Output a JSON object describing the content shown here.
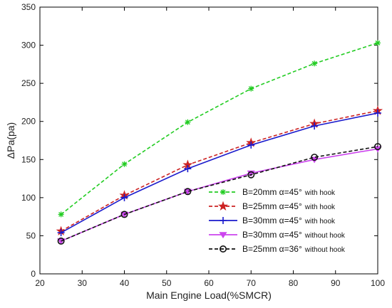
{
  "chart_data": {
    "type": "line",
    "xlabel": "Main Engine Load(%SMCR)",
    "ylabel": "ΔPa(pa)",
    "xlim": [
      20,
      100
    ],
    "ylim": [
      0,
      350
    ],
    "xticks": [
      20,
      30,
      40,
      50,
      60,
      70,
      80,
      90,
      100
    ],
    "yticks": [
      0,
      50,
      100,
      150,
      200,
      250,
      300,
      350
    ],
    "x": [
      25,
      40,
      55,
      70,
      85,
      100
    ],
    "grid": false,
    "legend_position": "bottom-right",
    "series": [
      {
        "name": "B=20mm α=45°",
        "suffix": "with hook",
        "color": "#22cc22",
        "dash": "dashed",
        "marker": "star",
        "values": [
          78,
          144,
          199,
          243,
          276,
          303
        ]
      },
      {
        "name": "B=25mm α=45°",
        "suffix": "with hook",
        "color": "#cc2222",
        "dash": "dashed",
        "marker": "pentastar",
        "values": [
          56,
          103,
          143,
          172,
          197,
          214
        ]
      },
      {
        "name": "B=30mm α=45°",
        "suffix": "with hook",
        "color": "#1a1acc",
        "dash": "solid",
        "marker": "plus",
        "values": [
          54,
          100,
          138,
          169,
          194,
          211
        ]
      },
      {
        "name": "B=30mm α=45°",
        "suffix": "without hook",
        "color": "#cc44ee",
        "dash": "solid",
        "marker": "triangle",
        "values": [
          43,
          78,
          108,
          132,
          150,
          164
        ]
      },
      {
        "name": "B=25mm α=36°",
        "suffix": "without hook",
        "color": "#111111",
        "dash": "dashed",
        "marker": "circle",
        "values": [
          43,
          78,
          108,
          130,
          153,
          167
        ]
      }
    ]
  }
}
